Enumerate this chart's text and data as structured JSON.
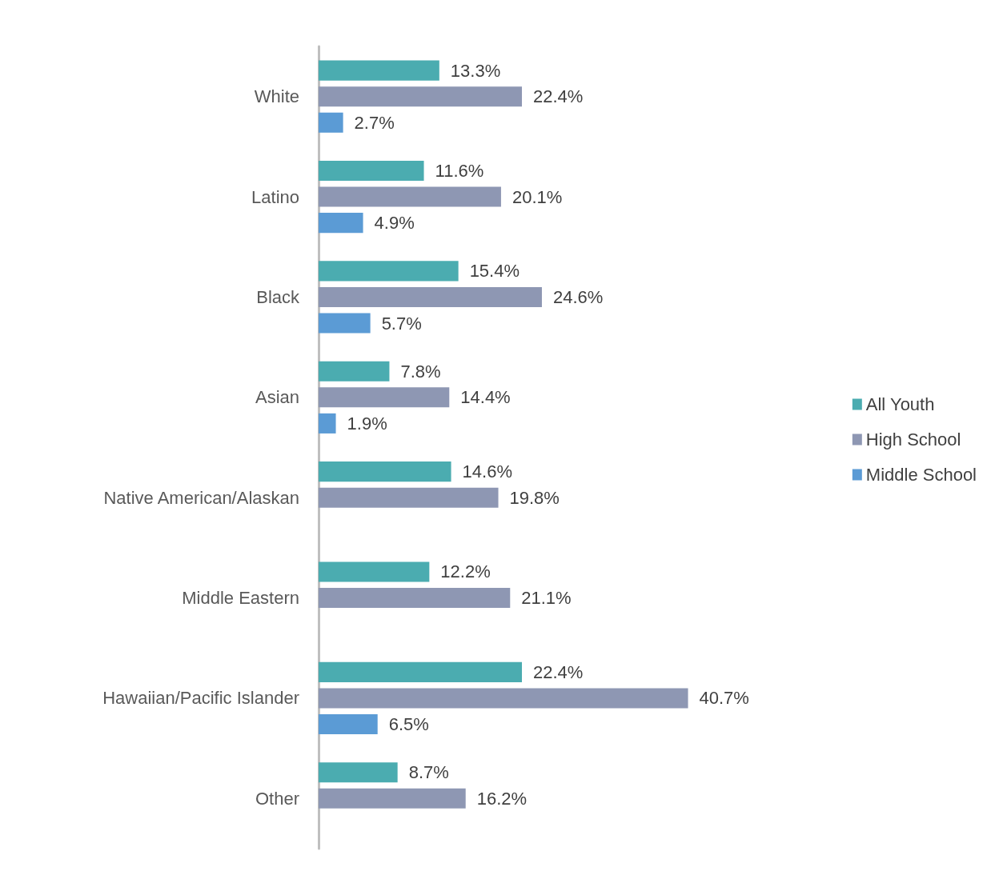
{
  "chart_data": {
    "type": "bar",
    "orientation": "horizontal",
    "categories": [
      "White",
      "Latino",
      "Black",
      "Asian",
      "Native American/Alaskan",
      "Middle Eastern",
      "Hawaiian/Pacific Islander",
      "Other"
    ],
    "series": [
      {
        "name": "All Youth",
        "color": "#4bacb0",
        "values": [
          13.3,
          11.6,
          15.4,
          7.8,
          14.6,
          12.2,
          22.4,
          8.7
        ],
        "value_labels": [
          "13.3%",
          "11.6%",
          "15.4%",
          "7.8%",
          "14.6%",
          "12.2%",
          "22.4%",
          "8.7%"
        ]
      },
      {
        "name": "High School",
        "color": "#8e97b3",
        "values": [
          22.4,
          20.1,
          24.6,
          14.4,
          19.8,
          21.1,
          40.7,
          16.2
        ],
        "value_labels": [
          "22.4%",
          "20.1%",
          "24.6%",
          "14.4%",
          "19.8%",
          "21.1%",
          "40.7%",
          "16.2%"
        ]
      },
      {
        "name": "Middle School",
        "color": "#5b9bd5",
        "values": [
          2.7,
          4.9,
          5.7,
          1.9,
          null,
          null,
          6.5,
          null
        ],
        "value_labels": [
          "2.7%",
          "4.9%",
          "5.7%",
          "1.9%",
          null,
          null,
          "6.5%",
          null
        ]
      }
    ],
    "legend": "right",
    "grid": false
  }
}
